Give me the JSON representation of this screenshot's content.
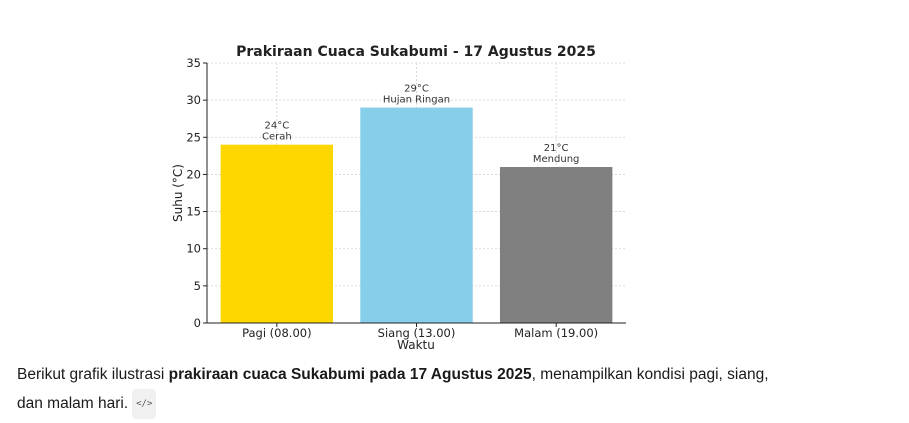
{
  "chart_data": {
    "type": "bar",
    "title": "Prakiraan Cuaca Sukabumi - 17 Agustus 2025",
    "xlabel": "Waktu",
    "ylabel": "Suhu (°C)",
    "categories": [
      "Pagi (08.00)",
      "Siang (13.00)",
      "Malam (19.00)"
    ],
    "values": [
      24,
      29,
      21
    ],
    "value_labels": [
      "24°C",
      "29°C",
      "21°C"
    ],
    "conditions": [
      "Cerah",
      "Hujan Ringan",
      "Mendung"
    ],
    "colors": [
      "#FFD700",
      "#87CEEB",
      "#808080"
    ],
    "ylim": [
      0,
      35
    ],
    "yticks": [
      "0",
      "5",
      "10",
      "15",
      "20",
      "25",
      "30",
      "35"
    ],
    "grid": true
  },
  "caption": {
    "part1": "Berikut grafik ilustrasi ",
    "bold": "prakiraan cuaca Sukabumi pada 17 Agustus 2025",
    "part2": ", menampilkan kondisi pagi, siang, dan malam hari.",
    "code_icon": "code-icon",
    "code_icon_glyph": "</>"
  }
}
